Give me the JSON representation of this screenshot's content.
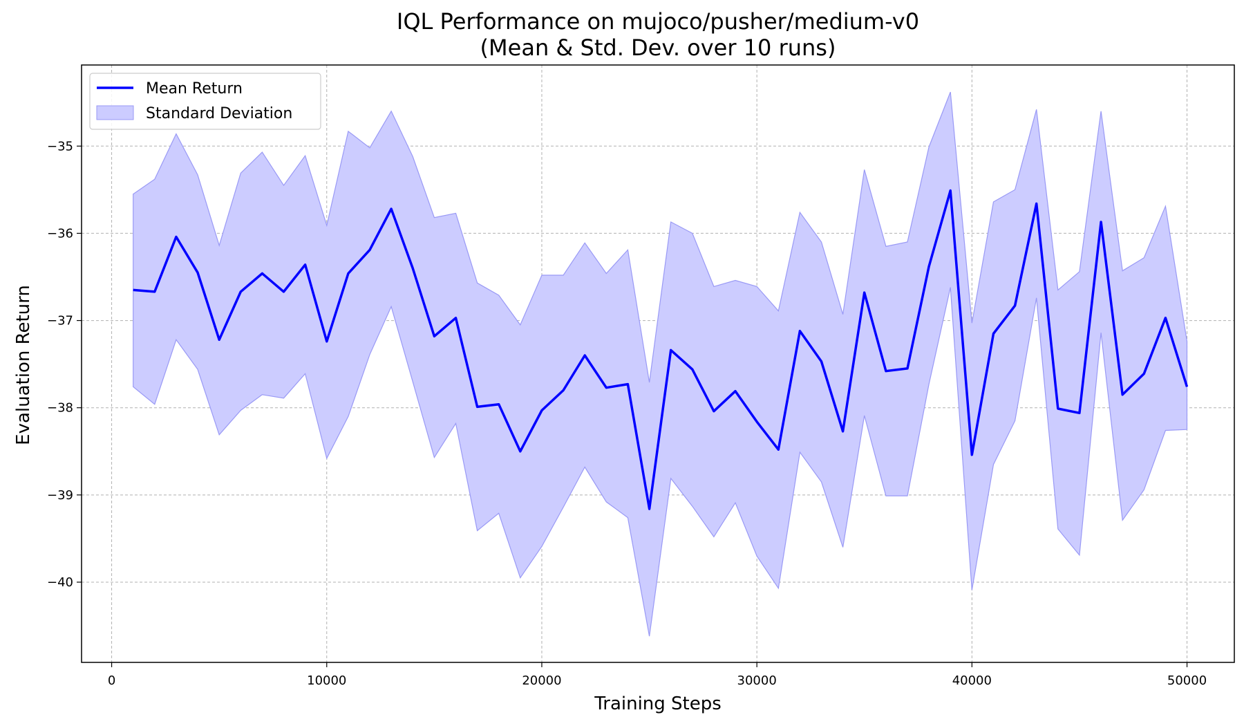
{
  "chart_data": {
    "type": "line",
    "title_line1": "IQL Performance on mujoco/pusher/medium-v0",
    "title_line2": "(Mean & Std. Dev. over 10 runs)",
    "xlabel": "Training Steps",
    "ylabel": "Evaluation Return",
    "xlim": [
      -1400,
      52200
    ],
    "ylim": [
      -40.92,
      -34.07
    ],
    "grid": true,
    "legend_position": "upper-left",
    "x_ticks": [
      0,
      10000,
      20000,
      30000,
      40000,
      50000
    ],
    "x_tick_labels": [
      "0",
      "10000",
      "20000",
      "30000",
      "40000",
      "50000"
    ],
    "y_ticks": [
      -40,
      -39,
      -38,
      -37,
      -36,
      -35
    ],
    "y_tick_labels": [
      "−40",
      "−39",
      "−38",
      "−37",
      "−36",
      "−35"
    ],
    "colors": {
      "line": "#0000ff",
      "band": "#ccccff",
      "band_edge": "#9999f5"
    },
    "x": [
      1000,
      2000,
      3000,
      4000,
      5000,
      6000,
      7000,
      8000,
      9000,
      10000,
      11000,
      12000,
      13000,
      14000,
      15000,
      16000,
      17000,
      18000,
      19000,
      20000,
      21000,
      22000,
      23000,
      24000,
      25000,
      26000,
      27000,
      28000,
      29000,
      30000,
      31000,
      32000,
      33000,
      34000,
      35000,
      36000,
      37000,
      38000,
      39000,
      40000,
      41000,
      42000,
      43000,
      44000,
      45000,
      46000,
      47000,
      48000,
      49000,
      50000
    ],
    "series": [
      {
        "name": "Mean Return",
        "values": [
          -36.65,
          -36.67,
          -36.04,
          -36.45,
          -37.22,
          -36.67,
          -36.46,
          -36.67,
          -36.36,
          -37.24,
          -36.46,
          -36.19,
          -35.72,
          -36.4,
          -37.18,
          -36.97,
          -37.99,
          -37.96,
          -38.5,
          -38.03,
          -37.8,
          -37.4,
          -37.77,
          -37.73,
          -39.16,
          -37.34,
          -37.56,
          -38.04,
          -37.81,
          -38.16,
          -38.48,
          -37.12,
          -37.47,
          -38.27,
          -36.68,
          -37.58,
          -37.55,
          -36.38,
          -35.51,
          -38.54,
          -37.15,
          -36.83,
          -35.66,
          -38.01,
          -38.06,
          -35.87,
          -37.85,
          -37.61,
          -36.97,
          -37.76
        ]
      },
      {
        "name": "Standard Deviation",
        "upper": [
          -35.55,
          -35.38,
          -34.86,
          -35.33,
          -36.14,
          -35.31,
          -35.07,
          -35.45,
          -35.11,
          -35.91,
          -34.83,
          -35.02,
          -34.6,
          -35.12,
          -35.82,
          -35.77,
          -36.57,
          -36.71,
          -37.05,
          -36.48,
          -36.48,
          -36.11,
          -36.46,
          -36.19,
          -37.71,
          -35.87,
          -36.0,
          -36.61,
          -36.54,
          -36.61,
          -36.89,
          -35.76,
          -36.1,
          -36.93,
          -35.27,
          -36.15,
          -36.1,
          -35.01,
          -34.38,
          -37.03,
          -35.64,
          -35.5,
          -34.58,
          -36.65,
          -36.44,
          -34.6,
          -36.43,
          -36.28,
          -35.69,
          -37.24
        ],
        "lower": [
          -37.76,
          -37.96,
          -37.22,
          -37.56,
          -38.31,
          -38.03,
          -37.85,
          -37.89,
          -37.61,
          -38.58,
          -38.1,
          -37.39,
          -36.84,
          -37.7,
          -38.57,
          -38.18,
          -39.41,
          -39.21,
          -39.95,
          -39.59,
          -39.14,
          -38.68,
          -39.08,
          -39.26,
          -40.62,
          -38.81,
          -39.13,
          -39.48,
          -39.09,
          -39.7,
          -40.07,
          -38.51,
          -38.85,
          -39.6,
          -38.09,
          -39.01,
          -39.01,
          -37.73,
          -36.62,
          -40.09,
          -38.65,
          -38.15,
          -36.74,
          -39.39,
          -39.69,
          -37.14,
          -39.29,
          -38.94,
          -38.26,
          -38.25
        ]
      }
    ]
  }
}
